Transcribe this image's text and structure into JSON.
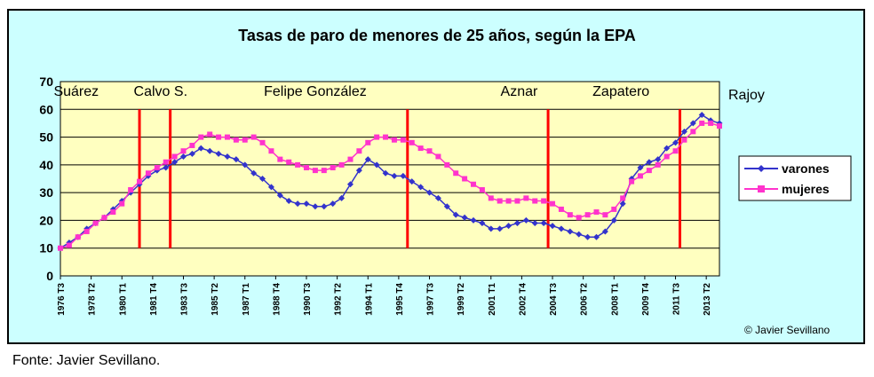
{
  "chart_data": {
    "type": "line",
    "title": "Tasas de paro de menores de 25 años, según la EPA",
    "ylim": [
      0,
      70
    ],
    "yticks": [
      0,
      10,
      20,
      30,
      40,
      50,
      60,
      70
    ],
    "grid": true,
    "legend_position": "right",
    "x_range": [
      1976.5,
      2014
    ],
    "xticks": [
      {
        "label": "1976 T3",
        "x": 1976.5
      },
      {
        "label": "1978 T2",
        "x": 1978.25
      },
      {
        "label": "1980 T1",
        "x": 1980.0
      },
      {
        "label": "1981 T4",
        "x": 1981.75
      },
      {
        "label": "1983 T3",
        "x": 1983.5
      },
      {
        "label": "1985 T2",
        "x": 1985.25
      },
      {
        "label": "1987 T1",
        "x": 1987.0
      },
      {
        "label": "1988 T4",
        "x": 1988.75
      },
      {
        "label": "1990 T3",
        "x": 1990.5
      },
      {
        "label": "1992 T2",
        "x": 1992.25
      },
      {
        "label": "1994 T1",
        "x": 1994.0
      },
      {
        "label": "1995 T4",
        "x": 1995.75
      },
      {
        "label": "1997 T3",
        "x": 1997.5
      },
      {
        "label": "1999 T2",
        "x": 1999.25
      },
      {
        "label": "2001 T1",
        "x": 2001.0
      },
      {
        "label": "2002 T4",
        "x": 2002.75
      },
      {
        "label": "2004 T3",
        "x": 2004.5
      },
      {
        "label": "2006 T2",
        "x": 2006.25
      },
      {
        "label": "2008 T1",
        "x": 2008.0
      },
      {
        "label": "2009 T4",
        "x": 2009.75
      },
      {
        "label": "2011 T3",
        "x": 2011.5
      },
      {
        "label": "2013 T2",
        "x": 2013.25
      }
    ],
    "series": [
      {
        "name": "varones",
        "color": "#3333cc",
        "marker": "diamond",
        "points": [
          [
            1976.5,
            10
          ],
          [
            1977,
            12
          ],
          [
            1977.5,
            14
          ],
          [
            1978,
            17
          ],
          [
            1978.5,
            19
          ],
          [
            1979,
            21
          ],
          [
            1979.5,
            24
          ],
          [
            1980,
            27
          ],
          [
            1980.5,
            30
          ],
          [
            1981,
            33
          ],
          [
            1981.5,
            36
          ],
          [
            1982,
            38
          ],
          [
            1982.5,
            39
          ],
          [
            1983,
            41
          ],
          [
            1983.5,
            43
          ],
          [
            1984,
            44
          ],
          [
            1984.5,
            46
          ],
          [
            1985,
            45
          ],
          [
            1985.5,
            44
          ],
          [
            1986,
            43
          ],
          [
            1986.5,
            42
          ],
          [
            1987,
            40
          ],
          [
            1987.5,
            37
          ],
          [
            1988,
            35
          ],
          [
            1988.5,
            32
          ],
          [
            1989,
            29
          ],
          [
            1989.5,
            27
          ],
          [
            1990,
            26
          ],
          [
            1990.5,
            26
          ],
          [
            1991,
            25
          ],
          [
            1991.5,
            25
          ],
          [
            1992,
            26
          ],
          [
            1992.5,
            28
          ],
          [
            1993,
            33
          ],
          [
            1993.5,
            38
          ],
          [
            1994,
            42
          ],
          [
            1994.5,
            40
          ],
          [
            1995,
            37
          ],
          [
            1995.5,
            36
          ],
          [
            1996,
            36
          ],
          [
            1996.5,
            34
          ],
          [
            1997,
            32
          ],
          [
            1997.5,
            30
          ],
          [
            1998,
            28
          ],
          [
            1998.5,
            25
          ],
          [
            1999,
            22
          ],
          [
            1999.5,
            21
          ],
          [
            2000,
            20
          ],
          [
            2000.5,
            19
          ],
          [
            2001,
            17
          ],
          [
            2001.5,
            17
          ],
          [
            2002,
            18
          ],
          [
            2002.5,
            19
          ],
          [
            2003,
            20
          ],
          [
            2003.5,
            19
          ],
          [
            2004,
            19
          ],
          [
            2004.5,
            18
          ],
          [
            2005,
            17
          ],
          [
            2005.5,
            16
          ],
          [
            2006,
            15
          ],
          [
            2006.5,
            14
          ],
          [
            2007,
            14
          ],
          [
            2007.5,
            16
          ],
          [
            2008,
            20
          ],
          [
            2008.5,
            26
          ],
          [
            2009,
            35
          ],
          [
            2009.5,
            39
          ],
          [
            2010,
            41
          ],
          [
            2010.5,
            42
          ],
          [
            2011,
            46
          ],
          [
            2011.5,
            48
          ],
          [
            2012,
            52
          ],
          [
            2012.5,
            55
          ],
          [
            2013,
            58
          ],
          [
            2013.5,
            56
          ],
          [
            2014,
            55
          ]
        ]
      },
      {
        "name": "mujeres",
        "color": "#ff33cc",
        "marker": "square",
        "points": [
          [
            1976.5,
            10
          ],
          [
            1977,
            11
          ],
          [
            1977.5,
            14
          ],
          [
            1978,
            16
          ],
          [
            1978.5,
            19
          ],
          [
            1979,
            21
          ],
          [
            1979.5,
            23
          ],
          [
            1980,
            26
          ],
          [
            1980.5,
            31
          ],
          [
            1981,
            34
          ],
          [
            1981.5,
            37
          ],
          [
            1982,
            39
          ],
          [
            1982.5,
            41
          ],
          [
            1983,
            43
          ],
          [
            1983.5,
            45
          ],
          [
            1984,
            47
          ],
          [
            1984.5,
            50
          ],
          [
            1985,
            51
          ],
          [
            1985.5,
            50
          ],
          [
            1986,
            50
          ],
          [
            1986.5,
            49
          ],
          [
            1987,
            49
          ],
          [
            1987.5,
            50
          ],
          [
            1988,
            48
          ],
          [
            1988.5,
            45
          ],
          [
            1989,
            42
          ],
          [
            1989.5,
            41
          ],
          [
            1990,
            40
          ],
          [
            1990.5,
            39
          ],
          [
            1991,
            38
          ],
          [
            1991.5,
            38
          ],
          [
            1992,
            39
          ],
          [
            1992.5,
            40
          ],
          [
            1993,
            42
          ],
          [
            1993.5,
            45
          ],
          [
            1994,
            48
          ],
          [
            1994.5,
            50
          ],
          [
            1995,
            50
          ],
          [
            1995.5,
            49
          ],
          [
            1996,
            49
          ],
          [
            1996.5,
            48
          ],
          [
            1997,
            46
          ],
          [
            1997.5,
            45
          ],
          [
            1998,
            43
          ],
          [
            1998.5,
            40
          ],
          [
            1999,
            37
          ],
          [
            1999.5,
            35
          ],
          [
            2000,
            33
          ],
          [
            2000.5,
            31
          ],
          [
            2001,
            28
          ],
          [
            2001.5,
            27
          ],
          [
            2002,
            27
          ],
          [
            2002.5,
            27
          ],
          [
            2003,
            28
          ],
          [
            2003.5,
            27
          ],
          [
            2004,
            27
          ],
          [
            2004.5,
            26
          ],
          [
            2005,
            24
          ],
          [
            2005.5,
            22
          ],
          [
            2006,
            21
          ],
          [
            2006.5,
            22
          ],
          [
            2007,
            23
          ],
          [
            2007.5,
            22
          ],
          [
            2008,
            24
          ],
          [
            2008.5,
            28
          ],
          [
            2009,
            34
          ],
          [
            2009.5,
            36
          ],
          [
            2010,
            38
          ],
          [
            2010.5,
            40
          ],
          [
            2011,
            43
          ],
          [
            2011.5,
            45
          ],
          [
            2012,
            49
          ],
          [
            2012.5,
            52
          ],
          [
            2013,
            55
          ],
          [
            2013.5,
            55
          ],
          [
            2014,
            54
          ]
        ]
      }
    ],
    "government_periods": [
      {
        "label": "Suárez",
        "label_x": 1977.4
      },
      {
        "label": "Calvo S.",
        "label_x": 1982.2
      },
      {
        "label": "Felipe González",
        "label_x": 1991.0
      },
      {
        "label": "Aznar",
        "label_x": 2002.6
      },
      {
        "label": "Zapatero",
        "label_x": 2008.4
      },
      {
        "label": "Rajoy",
        "label_x": null
      }
    ],
    "government_changes": [
      1981.0,
      1982.75,
      1996.25,
      2004.25,
      2011.75
    ],
    "line_color": "#ff0000"
  },
  "credit": "© Javier Sevillano",
  "caption": "Fonte: Javier Sevillano."
}
